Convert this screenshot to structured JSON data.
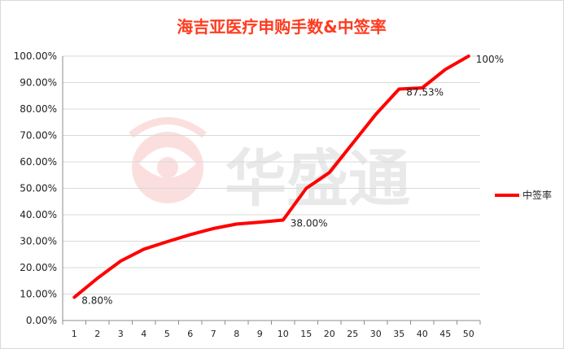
{
  "chart_data": {
    "type": "line",
    "title": "海吉亚医疗申购手数&中签率",
    "categories": [
      "1",
      "2",
      "3",
      "4",
      "5",
      "6",
      "7",
      "8",
      "9",
      "10",
      "15",
      "20",
      "25",
      "30",
      "35",
      "40",
      "45",
      "50"
    ],
    "series": [
      {
        "name": "中签率",
        "color": "#ff0000",
        "values": [
          8.8,
          16.0,
          22.5,
          27.0,
          29.8,
          32.5,
          34.8,
          36.5,
          37.2,
          38.0,
          50.0,
          56.0,
          67.0,
          78.0,
          87.53,
          88.0,
          95.0,
          100.0
        ]
      }
    ],
    "ylim": [
      0,
      100
    ],
    "yticks": [
      "0.00%",
      "10.00%",
      "20.00%",
      "30.00%",
      "40.00%",
      "50.00%",
      "60.00%",
      "70.00%",
      "80.00%",
      "90.00%",
      "100.00%"
    ],
    "annotations": [
      {
        "index": 0,
        "text": "8.80%"
      },
      {
        "index": 9,
        "text": "38.00%"
      },
      {
        "index": 14,
        "text": "87.53%"
      },
      {
        "index": 17,
        "text": "100%"
      }
    ],
    "legend": {
      "position": "right",
      "entries": [
        "中签率"
      ]
    },
    "grid": true,
    "watermark": "华盛通"
  }
}
